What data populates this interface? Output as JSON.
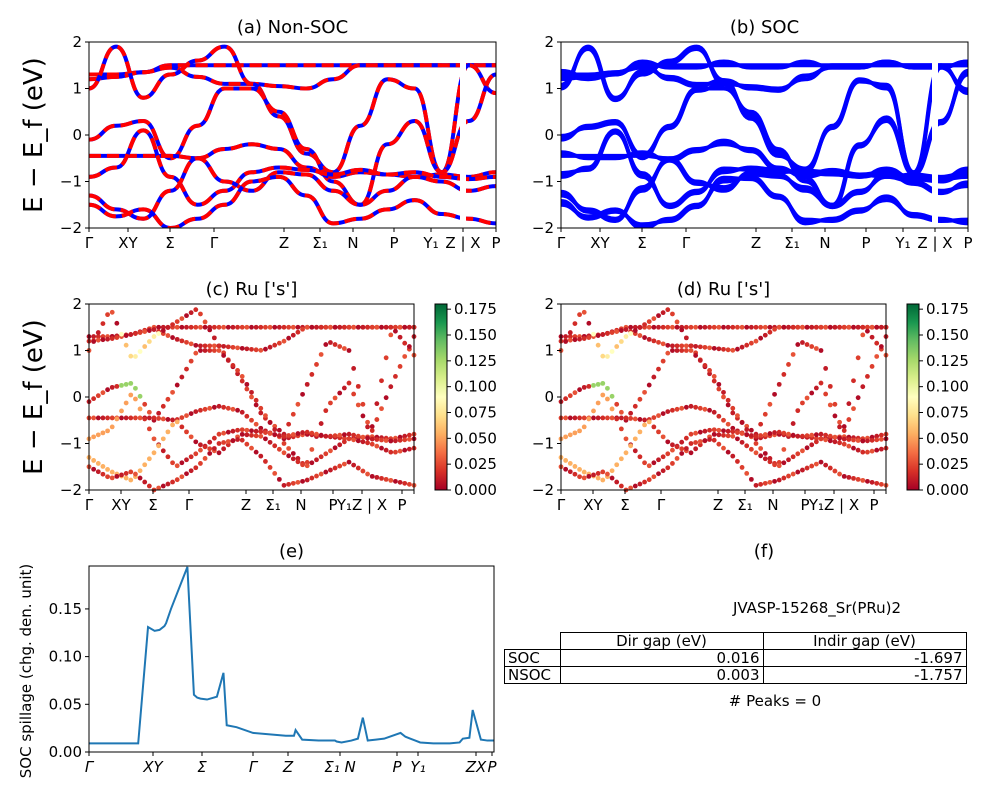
{
  "chart_data": [
    {
      "id": "a",
      "type": "line",
      "title": "(a) Non-SOC",
      "ylabel": "E − E_f (eV)",
      "ylim": [
        -2,
        2
      ],
      "yticks": [
        "2",
        "1",
        "0",
        "−1",
        "−2"
      ],
      "kpath_labels": [
        "Γ",
        "XY",
        "Σ",
        "Γ",
        "Z",
        "Σ₁",
        "N",
        "P",
        "Y₁",
        "Z | X",
        "P"
      ],
      "series": [
        {
          "color": "#0000ff",
          "style": "solid"
        },
        {
          "color": "#ff0000",
          "style": "dashed"
        }
      ],
      "bands": [
        [
          1.3,
          1.3,
          1.35,
          1.5,
          1.5,
          1.5,
          1.5,
          1.5,
          1.5,
          1.5,
          1.5,
          1.5,
          1.5,
          1.5,
          1.5,
          1.5
        ],
        [
          1.2,
          1.25,
          1.35,
          1.45,
          1.25,
          1.1,
          1.1,
          1.05,
          1.0,
          1.2,
          1.5,
          1.5,
          1.5,
          1.5,
          1.5,
          1.5
        ],
        [
          1.0,
          1.9,
          0.8,
          1.3,
          1.6,
          1.9,
          1.1,
          0.4,
          -0.4,
          -0.8,
          0.2,
          1.2,
          1.0,
          -0.8,
          1.5,
          0.9
        ],
        [
          -0.1,
          0.2,
          0.3,
          -0.5,
          0.2,
          1.0,
          1.0,
          0.5,
          -0.3,
          -1.0,
          -1.5,
          -0.2,
          0.3,
          -0.8,
          0.3,
          1.3
        ],
        [
          -0.45,
          -0.45,
          -0.45,
          -0.45,
          -0.5,
          -0.3,
          -0.2,
          -0.3,
          -0.7,
          -0.9,
          -0.8,
          -0.85,
          -0.9,
          -0.85,
          -0.9,
          -0.8
        ],
        [
          -0.9,
          -0.7,
          0.1,
          -0.9,
          -1.5,
          -1.2,
          -0.8,
          -0.7,
          -0.75,
          -0.85,
          -0.75,
          -0.85,
          -0.8,
          -0.9,
          -0.95,
          -0.9
        ],
        [
          -1.3,
          -1.6,
          -1.8,
          -1.2,
          -0.5,
          -1.0,
          -1.2,
          -0.8,
          -0.85,
          -1.2,
          -1.5,
          -1.2,
          -0.9,
          -1.0,
          -1.2,
          -1.1
        ],
        [
          -1.5,
          -1.75,
          -1.6,
          -2.0,
          -1.8,
          -1.5,
          -1.0,
          -0.9,
          -1.3,
          -1.9,
          -1.8,
          -1.6,
          -1.4,
          -1.7,
          -1.8,
          -1.9
        ]
      ]
    },
    {
      "id": "b",
      "type": "line",
      "title": "(b) SOC",
      "ylim": [
        -2,
        2
      ],
      "yticks": [
        "2",
        "1",
        "0",
        "−1",
        "−2"
      ],
      "kpath_labels": [
        "Γ",
        "XY",
        "Σ",
        "Γ",
        "Z",
        "Σ₁",
        "N",
        "P",
        "Y₁",
        "Z | X",
        "P"
      ],
      "series": [
        {
          "color": "#0000ff",
          "style": "solid"
        }
      ]
    },
    {
      "id": "c",
      "type": "scatter",
      "title": "(c)  Ru ['s']",
      "ylabel": "E − E_f (eV)",
      "ylim": [
        -2,
        2
      ],
      "yticks": [
        "2",
        "1",
        "0",
        "−1",
        "−2"
      ],
      "kpath_labels": [
        "Γ",
        "XY",
        "Σ",
        "Γ",
        "Z",
        "Σ₁",
        "N",
        "P",
        "Y₁Z | X",
        "P"
      ],
      "colorbar_ticks": [
        "0.175",
        "0.150",
        "0.125",
        "0.100",
        "0.075",
        "0.050",
        "0.025",
        "0.000"
      ],
      "clim": [
        0,
        0.18
      ]
    },
    {
      "id": "d",
      "type": "scatter",
      "title": "(d) Ru ['s']",
      "ylim": [
        -2,
        2
      ],
      "yticks": [
        "2",
        "1",
        "0",
        "−1",
        "−2"
      ],
      "kpath_labels": [
        "Γ",
        "XY",
        "Σ",
        "Γ",
        "Z",
        "Σ₁",
        "N",
        "P",
        "Y₁Z | X",
        "P"
      ],
      "colorbar_ticks": [
        "0.175",
        "0.150",
        "0.125",
        "0.100",
        "0.075",
        "0.050",
        "0.025",
        "0.000"
      ],
      "clim": [
        0,
        0.18
      ]
    },
    {
      "id": "e",
      "type": "line",
      "title": "(e)",
      "ylabel": "SOC spillage (chg. den. unit)",
      "ylim": [
        0,
        0.195
      ],
      "yticks": [
        "0.15",
        "0.10",
        "0.05",
        "0.00"
      ],
      "kpath_labels": [
        "Γ",
        "XY",
        "Σ",
        "Γ",
        "Z",
        "Σ₁ N",
        "P",
        "Y₁",
        "ZX",
        "P"
      ],
      "x": [
        0,
        0.5,
        1,
        1.2,
        2,
        3,
        3.6,
        4,
        4.3,
        4.6,
        4.7,
        5,
        6,
        6.4,
        6.6,
        6.8,
        7.2,
        7.8,
        8.2,
        8.4,
        9,
        10,
        12,
        12.5,
        12.6,
        13,
        14,
        15,
        15.1,
        15.4,
        16,
        16.4,
        16.7,
        17,
        17.5,
        18,
        19,
        19.3,
        19.6,
        19.9,
        20.2,
        21,
        22,
        22.6,
        22.8,
        23.2,
        23.4,
        23.9,
        24.3,
        24.7
      ],
      "values": [
        0.009,
        0.009,
        0.009,
        0.009,
        0.009,
        0.009,
        0.131,
        0.127,
        0.128,
        0.132,
        0.135,
        0.15,
        0.194,
        0.06,
        0.057,
        0.056,
        0.055,
        0.058,
        0.083,
        0.028,
        0.026,
        0.02,
        0.017,
        0.017,
        0.023,
        0.013,
        0.012,
        0.012,
        0.011,
        0.01,
        0.012,
        0.014,
        0.036,
        0.012,
        0.013,
        0.014,
        0.02,
        0.016,
        0.014,
        0.012,
        0.01,
        0.009,
        0.009,
        0.01,
        0.014,
        0.015,
        0.044,
        0.013,
        0.012,
        0.012
      ]
    }
  ],
  "panel_f": {
    "title": "(f)",
    "material": "JVASP-15268_Sr(PRu)2",
    "table": {
      "headers": [
        "Dir gap (eV)",
        "Indir gap (eV)"
      ],
      "rows": [
        {
          "label": "SOC",
          "dir": "0.016",
          "indir": "-1.697"
        },
        {
          "label": "NSOC",
          "dir": "0.003",
          "indir": "-1.757"
        }
      ]
    },
    "peaks": "# Peaks = 0"
  }
}
